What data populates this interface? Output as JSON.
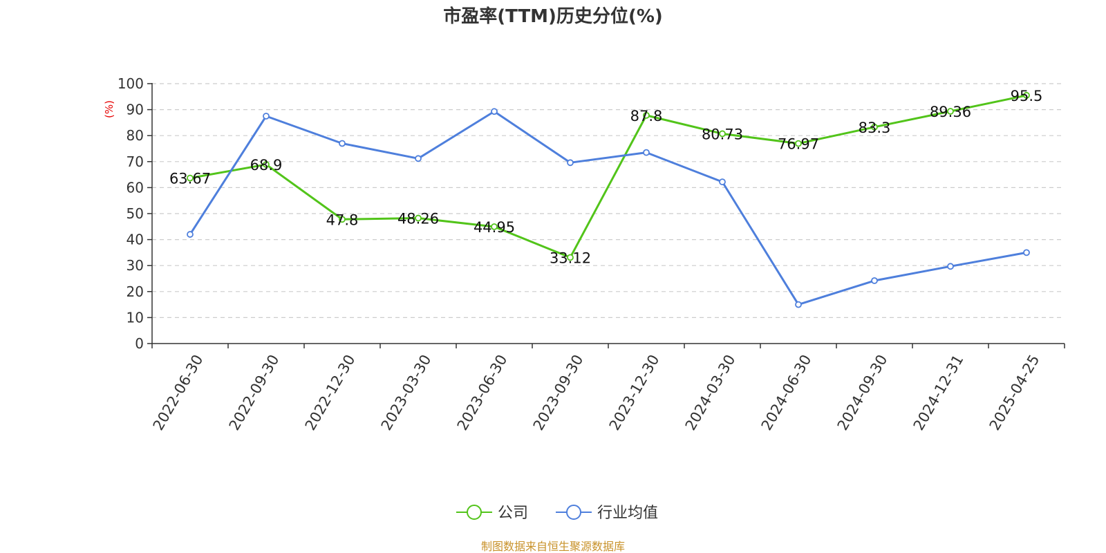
{
  "chart_data": {
    "type": "line",
    "title": "市盈率(TTM)历史分位(%)",
    "ylabel": "(%)",
    "ylim": [
      0,
      100
    ],
    "yticks": [
      0,
      10,
      20,
      30,
      40,
      50,
      60,
      70,
      80,
      90,
      100
    ],
    "grid": true,
    "legend_position": "bottom",
    "categories": [
      "2022-06-30",
      "2022-09-30",
      "2022-12-30",
      "2023-03-30",
      "2023-06-30",
      "2023-09-30",
      "2023-12-30",
      "2024-03-30",
      "2024-06-30",
      "2024-09-30",
      "2024-12-31",
      "2025-04-25"
    ],
    "series": [
      {
        "name": "公司",
        "color": "#52c41a",
        "values": [
          63.67,
          68.9,
          47.8,
          48.26,
          44.95,
          33.12,
          87.8,
          80.73,
          76.97,
          83.3,
          89.36,
          95.5
        ],
        "labels": [
          "63.67",
          "68.9",
          "47.8",
          "48.26",
          "44.95",
          "33.12",
          "87.8",
          "80.73",
          "76.97",
          "83.3",
          "89.36",
          "95.5"
        ],
        "show_labels": true
      },
      {
        "name": "行业均值",
        "color": "#4e7fdc",
        "values": [
          42,
          87.5,
          77,
          71.2,
          89.3,
          69.6,
          73.5,
          62.2,
          15,
          24.2,
          29.7,
          35
        ],
        "show_labels": false
      }
    ],
    "source": "制图数据来自恒生聚源数据库",
    "source_color": "#c8922a",
    "unit_color": "#e60000"
  }
}
